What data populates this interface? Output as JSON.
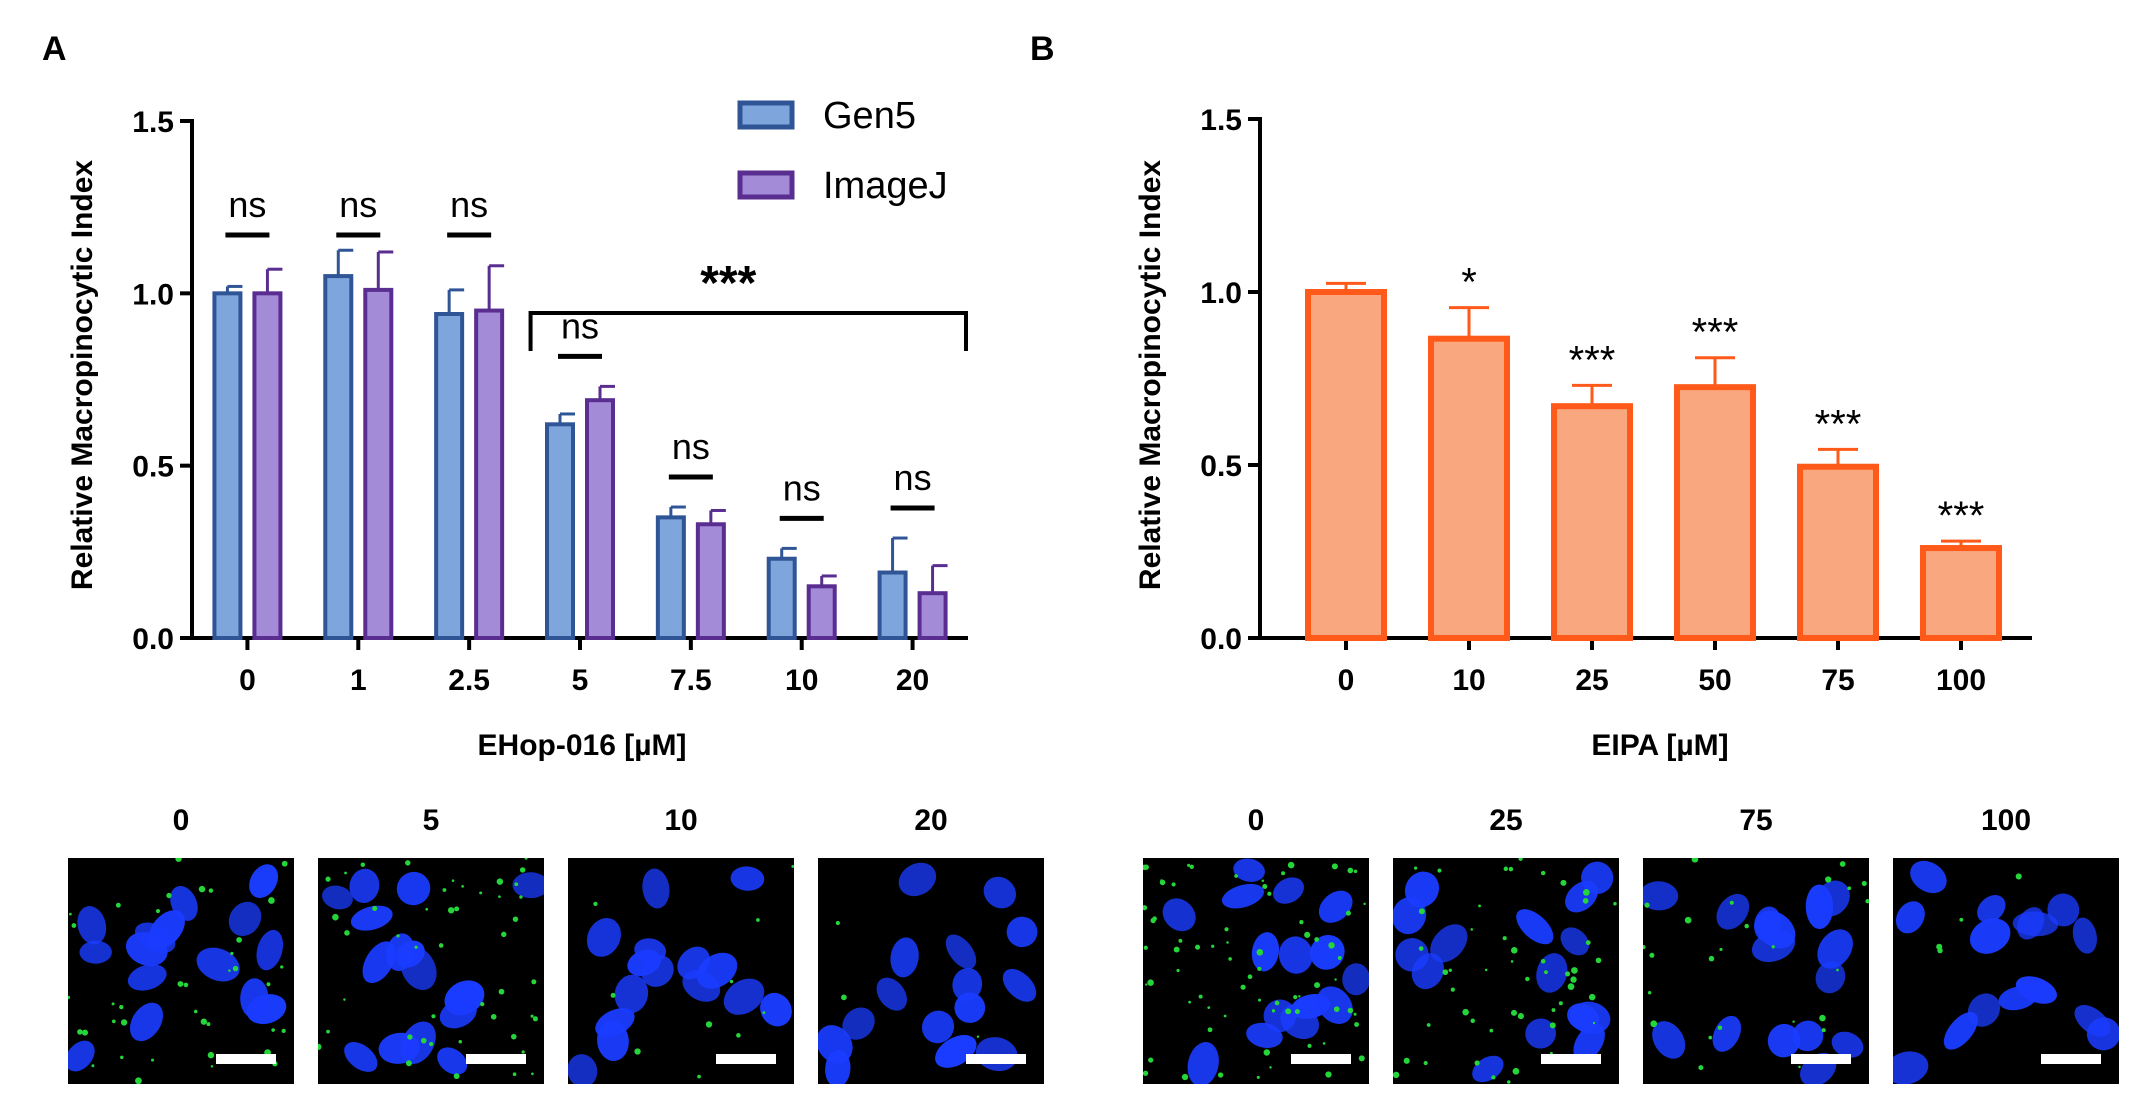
{
  "panels": {
    "a_label": "A",
    "b_label": "B"
  },
  "colors": {
    "gen5_fill": "#7ea6dc",
    "gen5_stroke": "#2f5597",
    "imagej_fill": "#a38bd8",
    "imagej_stroke": "#5a2d91",
    "eipa_fill": "#f8a77f",
    "eipa_stroke": "#ff5a1a",
    "nucleus": "#1a3cff",
    "puncta": "#25d63a",
    "micrograph_bg": "#000000",
    "scale_bar": "#ffffff"
  },
  "chart_data": [
    {
      "type": "bar",
      "panel": "A",
      "xlabel": "EHop-016 [µM]",
      "ylabel": "Relative Macropinocytic Index",
      "ylim": [
        0,
        1.5
      ],
      "yticks": [
        "0.0",
        "0.5",
        "1.0",
        "1.5"
      ],
      "categories": [
        "0",
        "1",
        "2.5",
        "5",
        "7.5",
        "10",
        "20"
      ],
      "series": [
        {
          "name": "Gen5",
          "values": [
            1.0,
            1.05,
            0.94,
            0.62,
            0.35,
            0.23,
            0.19
          ],
          "errors": [
            0.02,
            0.075,
            0.07,
            0.03,
            0.03,
            0.03,
            0.1
          ]
        },
        {
          "name": "ImageJ",
          "values": [
            1.0,
            1.01,
            0.95,
            0.69,
            0.33,
            0.15,
            0.13
          ],
          "errors": [
            0.07,
            0.11,
            0.13,
            0.04,
            0.04,
            0.03,
            0.08
          ]
        }
      ],
      "legend_position": "top-right",
      "pair_annotations": [
        "ns",
        "ns",
        "ns",
        "ns",
        "ns",
        "ns",
        "ns"
      ],
      "bracket_annotation": "***",
      "bracket_span": [
        "5",
        "20"
      ]
    },
    {
      "type": "bar",
      "panel": "B",
      "xlabel": "EIPA [µM]",
      "ylabel": "Relative Macropinocytic Index",
      "ylim": [
        0,
        1.5
      ],
      "yticks": [
        "0.0",
        "0.5",
        "1.0",
        "1.5"
      ],
      "categories": [
        "0",
        "10",
        "25",
        "50",
        "75",
        "100"
      ],
      "values": [
        1.0,
        0.865,
        0.67,
        0.725,
        0.495,
        0.26
      ],
      "errors": [
        0.025,
        0.09,
        0.06,
        0.085,
        0.05,
        0.02
      ],
      "annotations": [
        "",
        "*",
        "***",
        "***",
        "***",
        "***"
      ]
    }
  ],
  "micrographs": {
    "a_labels": [
      "0",
      "5",
      "10",
      "20"
    ],
    "b_labels": [
      "0",
      "25",
      "75",
      "100"
    ]
  }
}
